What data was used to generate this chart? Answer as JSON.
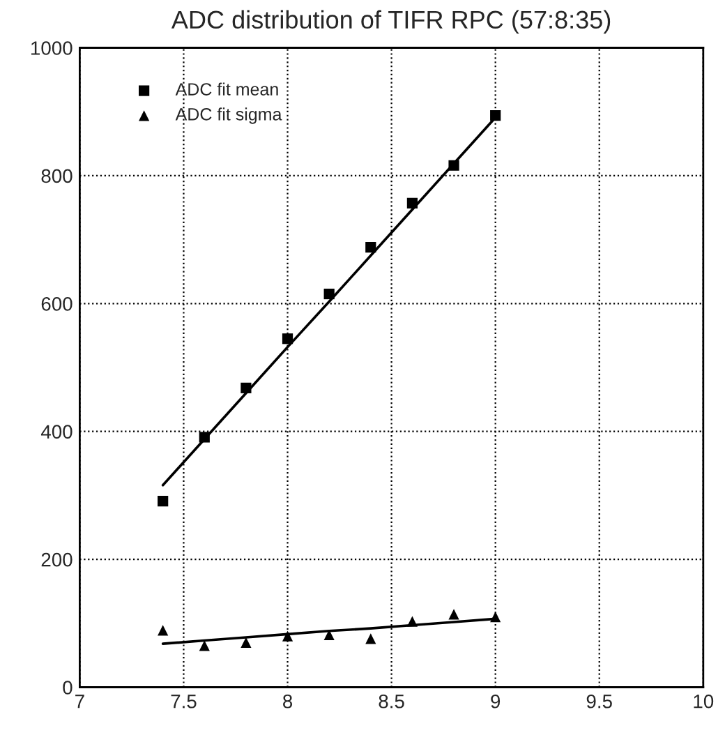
{
  "chart_data": {
    "type": "scatter",
    "title": "ADC distribution of TIFR RPC (57:8:35)",
    "x": [
      7.4,
      7.6,
      7.8,
      8.0,
      8.2,
      8.4,
      8.6,
      8.8,
      9.0
    ],
    "series": [
      {
        "name": "ADC fit mean",
        "color": "#000000",
        "marker": "square",
        "values": [
          291,
          391,
          468,
          545,
          615,
          688,
          757,
          816,
          894
        ]
      },
      {
        "name": "ADC fit sigma",
        "color": "#000000",
        "marker": "triangle",
        "values": [
          89,
          65,
          70,
          80,
          82,
          76,
          103,
          114,
          110
        ]
      },
      {
        "type": "line",
        "color": "#000000",
        "values": [
          316,
          388,
          460,
          532,
          603,
          675,
          747,
          819,
          891
        ]
      },
      {
        "type": "line",
        "color": "#000000",
        "values": [
          68,
          73,
          78,
          83,
          88,
          92,
          97,
          102,
          107
        ]
      }
    ],
    "xlim": [
      7,
      10
    ],
    "xticks": [
      7,
      7.5,
      8,
      8.5,
      9,
      9.5,
      10
    ],
    "ylim": [
      0,
      1000
    ],
    "yticks": [
      0,
      200,
      400,
      600,
      800,
      1000
    ],
    "grid": true,
    "legend": "top left"
  }
}
